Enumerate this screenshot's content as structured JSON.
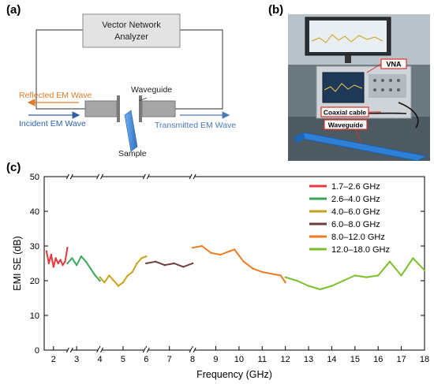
{
  "panel_labels": {
    "a": "(a)",
    "b": "(b)",
    "c": "(c)"
  },
  "diagram": {
    "vna_line1": "Vector Network",
    "vna_line2": "Analyzer",
    "reflected": "Reflected EM Wave",
    "incident": "Incident EM Wave",
    "waveguide": "Waveguide",
    "transmitted": "Transmitted EM Wave",
    "sample": "Sample"
  },
  "photo": {
    "vna": "VNA",
    "coaxial": "Coaxial cable",
    "waveguide": "Waveguide"
  },
  "colors": {
    "reflected": "#e07b2a",
    "incident": "#2f5ea8",
    "transmitted": "#4a78b8",
    "sample": "#3a7fd0",
    "waveguide_box": "#a6a6a6",
    "photo_label_border": "#d93025"
  },
  "chart_data": {
    "type": "line",
    "xlabel": "Frequency (GHz)",
    "ylabel": "EMI SE (dB)",
    "xlim": [
      1.6,
      18
    ],
    "ylim": [
      0,
      50
    ],
    "xticks": [
      2,
      3,
      4,
      5,
      6,
      7,
      8,
      9,
      10,
      11,
      12,
      13,
      14,
      15,
      16,
      17,
      18
    ],
    "yticks": [
      0,
      10,
      20,
      30,
      40,
      50
    ],
    "axis_breaks": [
      2.7,
      4.0,
      6.0,
      8.0
    ],
    "legend_position": "top-right",
    "series": [
      {
        "name": "1.7–2.6 GHz",
        "color": "#e8383d",
        "x": [
          1.7,
          1.8,
          1.9,
          2.0,
          2.1,
          2.2,
          2.3,
          2.4,
          2.5,
          2.6
        ],
        "y": [
          28.5,
          25.0,
          27.5,
          24.0,
          26.5,
          25.0,
          26.0,
          24.5,
          25.5,
          29.5
        ]
      },
      {
        "name": "2.6–4.0 GHz",
        "color": "#3aa65c",
        "x": [
          2.6,
          2.8,
          3.0,
          3.2,
          3.4,
          3.6,
          3.8,
          4.0
        ],
        "y": [
          25.0,
          26.5,
          24.5,
          27.0,
          25.5,
          23.5,
          21.5,
          20.0
        ]
      },
      {
        "name": "4.0–6.0 GHz",
        "color": "#c9a21c",
        "x": [
          4.0,
          4.2,
          4.4,
          4.6,
          4.8,
          5.0,
          5.2,
          5.4,
          5.6,
          5.8,
          6.0
        ],
        "y": [
          21.0,
          19.5,
          21.5,
          20.0,
          18.5,
          19.5,
          21.5,
          22.5,
          25.0,
          26.5,
          27.0
        ]
      },
      {
        "name": "6.0–8.0 GHz",
        "color": "#6e3d3a",
        "x": [
          6.0,
          6.4,
          6.8,
          7.2,
          7.6,
          8.0
        ],
        "y": [
          25.0,
          25.5,
          24.5,
          25.0,
          24.0,
          25.0
        ]
      },
      {
        "name": "8.0–12.0 GHz",
        "color": "#f07a1e",
        "x": [
          8.0,
          8.4,
          8.8,
          9.2,
          9.6,
          9.8,
          10.2,
          10.6,
          11.0,
          11.4,
          11.8,
          12.0
        ],
        "y": [
          29.5,
          30.0,
          28.0,
          27.5,
          28.5,
          29.0,
          25.5,
          23.5,
          22.5,
          22.0,
          21.5,
          19.5
        ]
      },
      {
        "name": "12.0–18.0 GHz",
        "color": "#7bbf2a",
        "x": [
          12.0,
          12.5,
          13.0,
          13.5,
          14.0,
          14.5,
          15.0,
          15.5,
          16.0,
          16.5,
          17.0,
          17.5,
          18.0
        ],
        "y": [
          21.0,
          20.0,
          18.5,
          17.5,
          18.5,
          20.0,
          21.5,
          21.0,
          21.5,
          25.5,
          21.5,
          26.5,
          23.0
        ]
      }
    ]
  }
}
